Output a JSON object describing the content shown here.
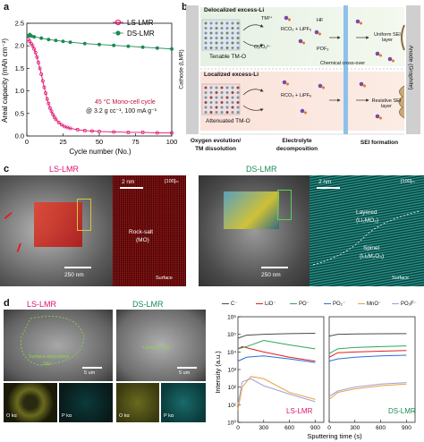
{
  "panel_letters": {
    "a": "a",
    "b": "b",
    "c": "c",
    "d": "d"
  },
  "colors": {
    "ls": "#e0106e",
    "ds": "#1a8a55",
    "cycle_note": "#c0103a"
  },
  "chart_data": [
    {
      "type": "line",
      "panel": "a",
      "xlabel": "Cycle number (No.)",
      "ylabel": "Areal capacity (mAh cm⁻²)",
      "xlim": [
        0,
        100
      ],
      "ylim": [
        0,
        2.5
      ],
      "xticks": [
        0,
        25,
        50,
        75,
        100
      ],
      "yticks": [
        0.0,
        0.5,
        1.0,
        1.5,
        2.0,
        2.5
      ],
      "legend": "top-right",
      "annotation": {
        "line1": "45 °C Mono-cell cycle",
        "line2": "@ 3.2 g cc⁻¹, 100 mA g⁻¹"
      },
      "series": [
        {
          "name": "LS-LMR",
          "x": [
            1,
            2,
            3,
            4,
            5,
            6,
            7,
            8,
            9,
            10,
            11,
            12,
            13,
            14,
            15,
            16,
            17,
            18,
            19,
            20,
            22,
            24,
            26,
            28,
            30,
            35,
            40,
            45,
            50,
            60,
            70,
            80,
            90,
            100
          ],
          "y": [
            2.15,
            2.1,
            2.05,
            2.0,
            1.93,
            1.85,
            1.75,
            1.63,
            1.5,
            1.37,
            1.22,
            1.08,
            0.95,
            0.82,
            0.72,
            0.62,
            0.55,
            0.48,
            0.42,
            0.37,
            0.3,
            0.25,
            0.21,
            0.19,
            0.17,
            0.14,
            0.12,
            0.11,
            0.1,
            0.09,
            0.08,
            0.08,
            0.07,
            0.07
          ]
        },
        {
          "name": "DS-LMR",
          "x": [
            1,
            2,
            3,
            5,
            10,
            15,
            20,
            25,
            30,
            40,
            50,
            60,
            70,
            80,
            90,
            100
          ],
          "y": [
            2.22,
            2.25,
            2.22,
            2.2,
            2.17,
            2.14,
            2.12,
            2.1,
            2.08,
            2.05,
            2.03,
            2.01,
            1.99,
            1.97,
            1.95,
            1.93
          ]
        }
      ]
    },
    {
      "type": "line",
      "panel": "d-left",
      "xlabel": "",
      "ylabel": "Intensity (a.u.)",
      "yscale": "log",
      "ylim": [
        1,
        1000000
      ],
      "yticks_label": [
        "10⁰",
        "10¹",
        "10²",
        "10³",
        "10⁴",
        "10⁵",
        "10⁶"
      ],
      "xlim": [
        0,
        1000
      ],
      "xticks": [
        0,
        300,
        600,
        900
      ],
      "label": "LS-LMR",
      "series": [
        {
          "name": "C⁻",
          "x": [
            0,
            100,
            300,
            600,
            900
          ],
          "y": [
            60000,
            90000,
            100000,
            110000,
            115000
          ]
        },
        {
          "name": "LiO⁻",
          "x": [
            0,
            50,
            150,
            300,
            600,
            900
          ],
          "y": [
            15000,
            20000,
            15000,
            10000,
            5000,
            3000
          ]
        },
        {
          "name": "PO⁻",
          "x": [
            0,
            100,
            300,
            600,
            900
          ],
          "y": [
            15000,
            20000,
            45000,
            25000,
            15000
          ]
        },
        {
          "name": "PO₂⁻",
          "x": [
            0,
            100,
            300,
            600,
            900
          ],
          "y": [
            3000,
            5000,
            6000,
            4000,
            2500
          ]
        },
        {
          "name": "MnO⁻",
          "x": [
            0,
            50,
            150,
            300,
            600,
            900
          ],
          "y": [
            5,
            100,
            400,
            300,
            50,
            20
          ]
        },
        {
          "name": "PO₂F⁻",
          "x": [
            0,
            50,
            150,
            300,
            600,
            900
          ],
          "y": [
            10,
            200,
            300,
            120,
            40,
            15
          ]
        }
      ]
    },
    {
      "type": "line",
      "panel": "d-right",
      "xlabel": "Sputtering time (s)",
      "xlim": [
        0,
        1000
      ],
      "xticks": [
        0,
        300,
        600,
        900
      ],
      "yscale": "log",
      "ylim": [
        1,
        1000000
      ],
      "label": "DS-LMR",
      "series": [
        {
          "name": "C⁻",
          "x": [
            0,
            100,
            300,
            600,
            900
          ],
          "y": [
            80000,
            100000,
            105000,
            108000,
            110000
          ]
        },
        {
          "name": "LiO⁻",
          "x": [
            0,
            100,
            300,
            600,
            900
          ],
          "y": [
            5000,
            9000,
            10000,
            11000,
            12000
          ]
        },
        {
          "name": "PO⁻",
          "x": [
            0,
            100,
            300,
            600,
            900
          ],
          "y": [
            8000,
            15000,
            18000,
            20000,
            22000
          ]
        },
        {
          "name": "PO₂⁻",
          "x": [
            0,
            100,
            300,
            600,
            900
          ],
          "y": [
            3000,
            4000,
            5000,
            6000,
            6500
          ]
        },
        {
          "name": "MnO⁻",
          "x": [
            0,
            100,
            300,
            600,
            900
          ],
          "y": [
            20,
            50,
            80,
            120,
            150
          ]
        },
        {
          "name": "PO₂F⁻",
          "x": [
            0,
            100,
            300,
            600,
            900
          ],
          "y": [
            30,
            60,
            100,
            150,
            180
          ]
        }
      ]
    }
  ],
  "tof_legend": [
    {
      "label": "C⁻",
      "color": "#4a4a4a"
    },
    {
      "label": "LiO⁻",
      "color": "#e02020"
    },
    {
      "label": "PO⁻",
      "color": "#2aa855"
    },
    {
      "label": "PO₂⁻",
      "color": "#2a6fd6"
    },
    {
      "label": "MnO⁻",
      "color": "#e8a040"
    },
    {
      "label": "PO₂F⁻",
      "color": "#a0a0d8"
    }
  ],
  "panel_b": {
    "top_title": "Delocalized excess-Li",
    "top_sub": "Tenable TM-O",
    "bottom_title": "Localized excess-Li",
    "bottom_sub": "Attenuated TM-O",
    "tm_label": "TM²⁺",
    "o2_label": "O₂/O₂²⁻",
    "rco3_top": "RCO₃ + LiPF₆",
    "hf_label": "HF",
    "pof3_label": "POF₃",
    "cross_over": "Chemical cross-over",
    "rco3_bottom": "RCO₃ + LiPF₆",
    "uniform_sei": "Uniform SEI layer",
    "resistive_sei": "Resistive SEI layer",
    "cathode": "Cathode (LMR)",
    "anode": "Anode (Graphite)",
    "bottom_label_1": "Oxygen evolution/",
    "bottom_label_2": "TM dissolution",
    "bottom_label_3": "Electrolyte",
    "bottom_label_4": "decomposition",
    "bottom_label_5": "SEI formation"
  },
  "panel_c": {
    "ls_title": "LS-LMR",
    "ds_title": "DS-LMR",
    "scale_250": "250 nm",
    "scale_2nm": "2 nm",
    "zone": "[100]ₘ",
    "rock_salt": "Rock-salt",
    "rock_salt_mo": "(MO)",
    "layered": "Layered",
    "layered_formula": "(Li₂MO₃)",
    "spinel": "Spinel",
    "spinel_formula": "(LiₓM₂O₄)",
    "surface": "Surface"
  },
  "panel_d_left": {
    "ls_title": "LS-LMR",
    "ds_title": "DS-LMR",
    "surface_sei_1": "Surface-deposited",
    "surface_sei_2": "SEI",
    "uniform_sei": "Uniform SEI",
    "scale_5um": "5 um",
    "o_ka": "O kα",
    "p_ka": "P kα"
  }
}
